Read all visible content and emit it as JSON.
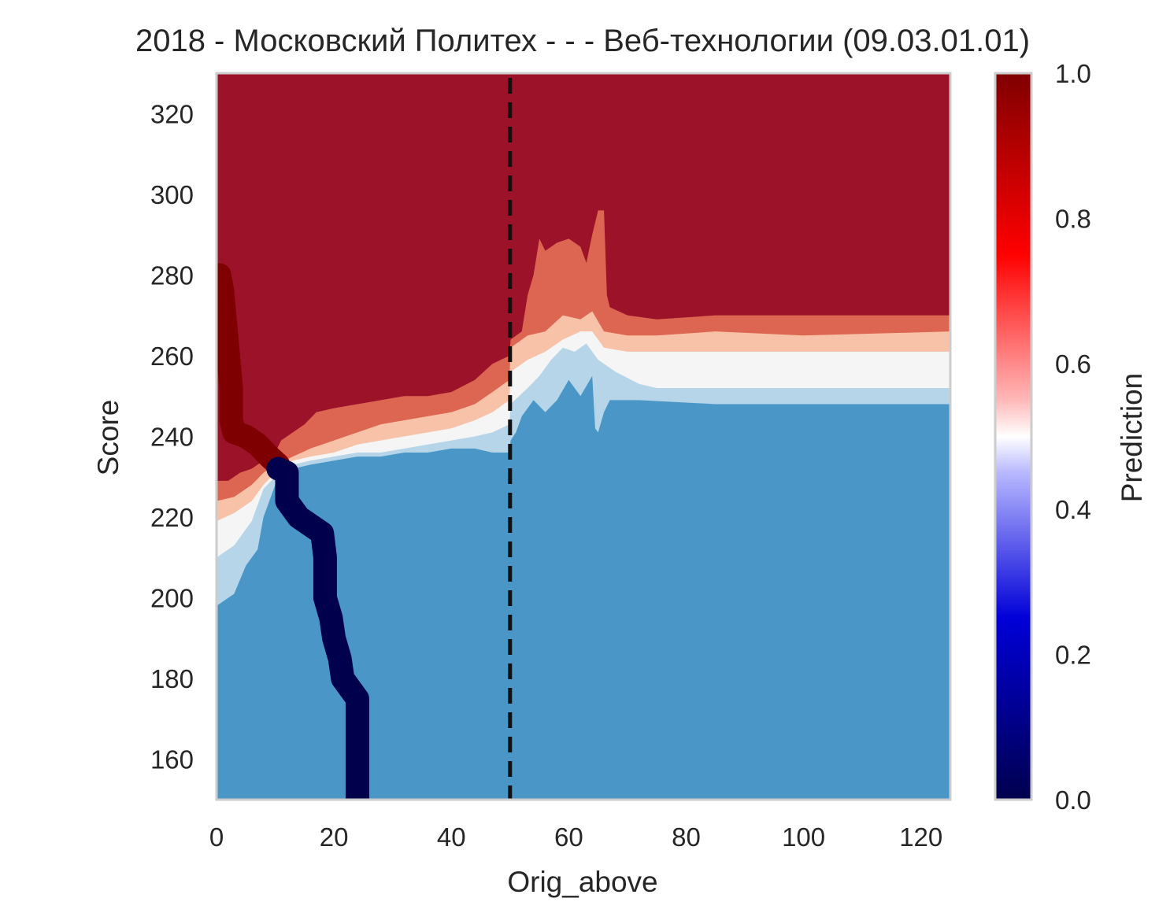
{
  "chart_data": {
    "type": "heatmap",
    "title": "2018 - Московский Политех - - - Веб-технологии (09.03.01.01)",
    "xlabel": "Orig_above",
    "ylabel": "Score",
    "xlim": [
      0,
      125
    ],
    "ylim": [
      150,
      330
    ],
    "x_ticks": [
      "0",
      "20",
      "40",
      "60",
      "80",
      "100",
      "120"
    ],
    "y_ticks": [
      "160",
      "180",
      "200",
      "220",
      "240",
      "260",
      "280",
      "300",
      "320"
    ],
    "colorbar": {
      "label": "Prediction",
      "range": [
        0,
        1
      ],
      "ticks": [
        "0.0",
        "0.2",
        "0.4",
        "0.6",
        "0.8",
        "1.0"
      ],
      "colormap": "seismic"
    },
    "grid": false,
    "reference_line": {
      "x": 50,
      "style": "dashed",
      "color": "#111111"
    },
    "contour_levels": [
      {
        "range": "0.0-0.17",
        "color": "#1b5796"
      },
      {
        "range": "0.17-0.33",
        "color": "#4a97c7"
      },
      {
        "range": "0.33-0.5",
        "color": "#b6d5e8"
      },
      {
        "range": "0.5-0.67",
        "color": "#f5f5f5"
      },
      {
        "range": "0.67-0.83",
        "color": "#f7c2a7"
      },
      {
        "range": "0.83-0.92",
        "color": "#dd6652"
      },
      {
        "range": "0.92-1.0",
        "color": "#9c1229"
      }
    ],
    "boundaries": [
      {
        "name": "b1",
        "points": [
          [
            0,
            229
          ],
          [
            2,
            229
          ],
          [
            4,
            231
          ],
          [
            6,
            232
          ],
          [
            8,
            234
          ],
          [
            10,
            236
          ],
          [
            11,
            239
          ],
          [
            13,
            241
          ],
          [
            15,
            243
          ],
          [
            17,
            246
          ],
          [
            20,
            247
          ],
          [
            24,
            248
          ],
          [
            28,
            249
          ],
          [
            32,
            250
          ],
          [
            36,
            250
          ],
          [
            40,
            251
          ],
          [
            44,
            254
          ],
          [
            47,
            258
          ],
          [
            49.9,
            260
          ],
          [
            50.1,
            264
          ],
          [
            52,
            266
          ],
          [
            53,
            275
          ],
          [
            54,
            280
          ],
          [
            55,
            289
          ],
          [
            56,
            286
          ],
          [
            58,
            288
          ],
          [
            60,
            289
          ],
          [
            62,
            287
          ],
          [
            63,
            283
          ],
          [
            64,
            290
          ],
          [
            65,
            296
          ],
          [
            66,
            296
          ],
          [
            66.5,
            275
          ],
          [
            67,
            272
          ],
          [
            70,
            270
          ],
          [
            75,
            269
          ],
          [
            85,
            270
          ],
          [
            100,
            270
          ],
          [
            125,
            270
          ]
        ]
      },
      {
        "name": "b2",
        "points": [
          [
            0,
            224
          ],
          [
            3,
            225
          ],
          [
            6,
            228
          ],
          [
            8,
            231
          ],
          [
            10,
            233
          ],
          [
            13,
            235
          ],
          [
            16,
            237
          ],
          [
            20,
            239
          ],
          [
            24,
            241
          ],
          [
            28,
            243
          ],
          [
            32,
            244
          ],
          [
            36,
            245
          ],
          [
            40,
            246
          ],
          [
            44,
            248
          ],
          [
            47,
            251
          ],
          [
            49.9,
            254
          ],
          [
            50.1,
            262
          ],
          [
            53,
            265
          ],
          [
            56,
            266
          ],
          [
            59,
            270
          ],
          [
            62,
            269
          ],
          [
            64,
            271
          ],
          [
            66,
            266
          ],
          [
            70,
            265
          ],
          [
            75,
            265
          ],
          [
            85,
            266
          ],
          [
            100,
            265
          ],
          [
            125,
            266
          ]
        ]
      },
      {
        "name": "b3",
        "points": [
          [
            0,
            219
          ],
          [
            3,
            221
          ],
          [
            6,
            224
          ],
          [
            8,
            228
          ],
          [
            10,
            231
          ],
          [
            13,
            234
          ],
          [
            16,
            235
          ],
          [
            20,
            236
          ],
          [
            24,
            238
          ],
          [
            28,
            239
          ],
          [
            32,
            240
          ],
          [
            36,
            241
          ],
          [
            40,
            242
          ],
          [
            44,
            244
          ],
          [
            47,
            246
          ],
          [
            49.9,
            249
          ],
          [
            50.1,
            256
          ],
          [
            53,
            259
          ],
          [
            56,
            261
          ],
          [
            59,
            264
          ],
          [
            62,
            266
          ],
          [
            64,
            266
          ],
          [
            66,
            262
          ],
          [
            70,
            261
          ],
          [
            75,
            261
          ],
          [
            100,
            261
          ],
          [
            125,
            261
          ]
        ]
      },
      {
        "name": "b4",
        "points": [
          [
            0,
            210
          ],
          [
            3,
            213
          ],
          [
            6,
            219
          ],
          [
            8,
            227
          ],
          [
            10,
            230
          ],
          [
            13,
            233
          ],
          [
            16,
            234
          ],
          [
            20,
            235
          ],
          [
            24,
            236
          ],
          [
            28,
            236
          ],
          [
            32,
            237
          ],
          [
            36,
            238
          ],
          [
            40,
            239
          ],
          [
            44,
            240
          ],
          [
            47,
            241
          ],
          [
            49.9,
            243
          ],
          [
            50.1,
            248
          ],
          [
            53,
            252
          ],
          [
            55,
            255
          ],
          [
            57,
            259
          ],
          [
            59,
            262
          ],
          [
            61,
            261
          ],
          [
            63,
            263
          ],
          [
            65,
            259
          ],
          [
            68,
            256
          ],
          [
            72,
            253
          ],
          [
            75,
            252
          ],
          [
            100,
            252
          ],
          [
            125,
            252
          ]
        ]
      },
      {
        "name": "b5",
        "points": [
          [
            0,
            198
          ],
          [
            3,
            201
          ],
          [
            5,
            208
          ],
          [
            7,
            212
          ],
          [
            8,
            220
          ],
          [
            10,
            228
          ],
          [
            13,
            232
          ],
          [
            16,
            233
          ],
          [
            20,
            234
          ],
          [
            24,
            235
          ],
          [
            28,
            235
          ],
          [
            32,
            236
          ],
          [
            36,
            236
          ],
          [
            40,
            237
          ],
          [
            44,
            237
          ],
          [
            47,
            236
          ],
          [
            49.9,
            236
          ],
          [
            50.1,
            239
          ],
          [
            51,
            241
          ],
          [
            52,
            245
          ],
          [
            54,
            249
          ],
          [
            56,
            246
          ],
          [
            58,
            249
          ],
          [
            60,
            254
          ],
          [
            62,
            250
          ],
          [
            64,
            255
          ],
          [
            64.5,
            242
          ],
          [
            65,
            241
          ],
          [
            66,
            246
          ],
          [
            67,
            249
          ],
          [
            72,
            249
          ],
          [
            85,
            248
          ],
          [
            125,
            248
          ]
        ]
      }
    ],
    "high_prediction_path": {
      "value": 1.0,
      "points": [
        [
          0.5,
          280
        ],
        [
          1,
          276
        ],
        [
          1.5,
          268
        ],
        [
          2,
          260
        ],
        [
          2.5,
          252
        ],
        [
          2.5,
          244
        ],
        [
          3,
          241
        ],
        [
          5,
          240
        ],
        [
          7,
          238
        ],
        [
          9,
          235
        ],
        [
          10.5,
          233
        ]
      ]
    },
    "low_prediction_path": {
      "value": 0.0,
      "points": [
        [
          10.5,
          232
        ],
        [
          12,
          231
        ],
        [
          12,
          224
        ],
        [
          14,
          220
        ],
        [
          16,
          218
        ],
        [
          18,
          216
        ],
        [
          18.5,
          210
        ],
        [
          18.5,
          200
        ],
        [
          19.5,
          195
        ],
        [
          20,
          190
        ],
        [
          21,
          185
        ],
        [
          21.5,
          180
        ],
        [
          23,
          177
        ],
        [
          24,
          175
        ],
        [
          24,
          165
        ],
        [
          24,
          158
        ],
        [
          24,
          150
        ]
      ]
    }
  }
}
